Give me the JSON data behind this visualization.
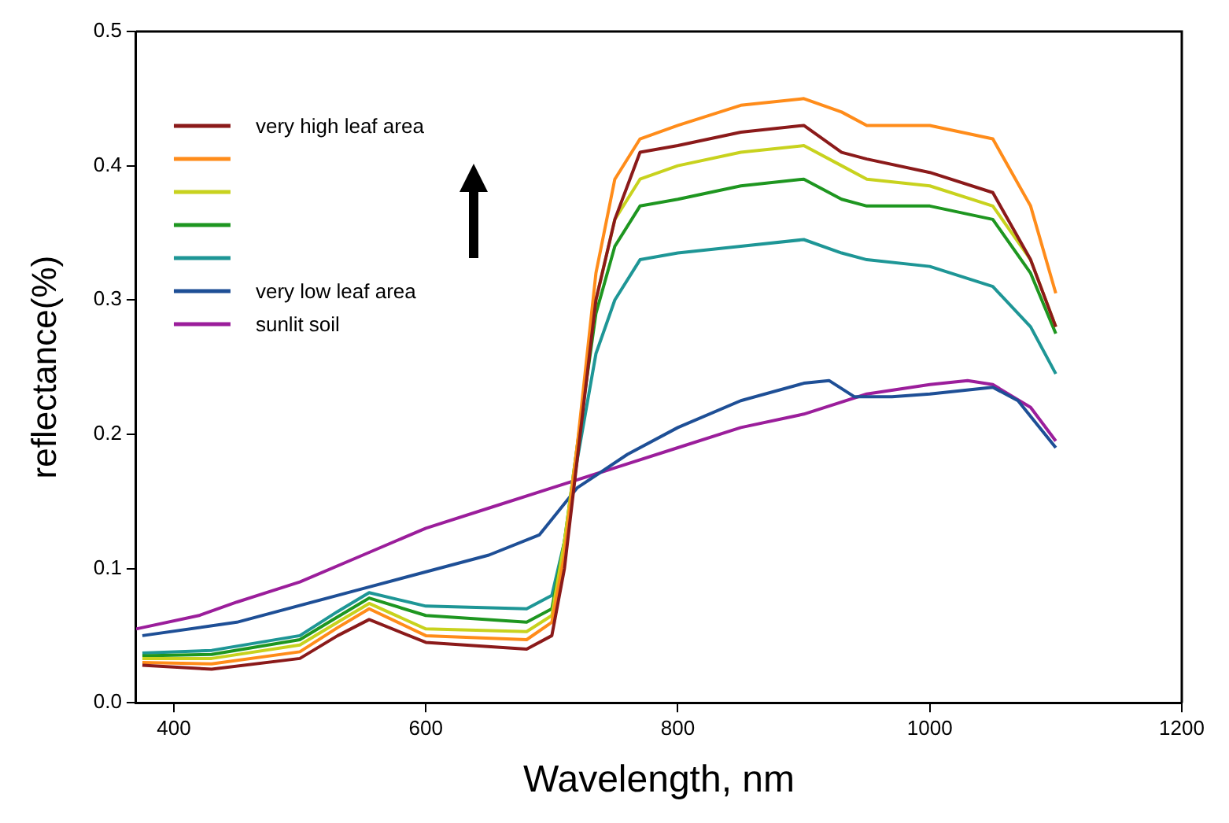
{
  "chart_data": {
    "type": "line",
    "xlabel": "Wavelength, nm",
    "ylabel": "reflectance(%)",
    "xlim": [
      370,
      1200
    ],
    "xticks": [
      400,
      600,
      800,
      1000,
      1200
    ],
    "ylim": [
      0,
      0.5
    ],
    "yticks": [
      {
        "value": 0,
        "label": "0.0"
      },
      {
        "value": 0.1,
        "label": "0.1"
      },
      {
        "value": 0.2,
        "label": "0.2"
      },
      {
        "value": 0.3,
        "label": "0.3"
      },
      {
        "value": 0.4,
        "label": "0.4"
      },
      {
        "value": 0.5,
        "label": "0.5"
      }
    ],
    "grid": false,
    "legend": "top left",
    "series": [
      {
        "name": "very high leaf area",
        "color": "#8b1a1a",
        "x": [
          375,
          430,
          500,
          530,
          555,
          600,
          680,
          700,
          710,
          720,
          735,
          750,
          770,
          800,
          850,
          900,
          930,
          950,
          1000,
          1050,
          1080,
          1100
        ],
        "values": [
          0.028,
          0.025,
          0.033,
          0.05,
          0.062,
          0.045,
          0.04,
          0.05,
          0.1,
          0.18,
          0.3,
          0.36,
          0.41,
          0.415,
          0.425,
          0.43,
          0.41,
          0.405,
          0.395,
          0.38,
          0.33,
          0.28
        ]
      },
      {
        "color": "#ff8c1a",
        "x": [
          375,
          430,
          500,
          530,
          555,
          600,
          680,
          700,
          710,
          720,
          735,
          750,
          770,
          800,
          850,
          900,
          930,
          950,
          1000,
          1050,
          1080,
          1100
        ],
        "values": [
          0.03,
          0.029,
          0.038,
          0.056,
          0.07,
          0.05,
          0.047,
          0.06,
          0.11,
          0.19,
          0.32,
          0.39,
          0.42,
          0.43,
          0.445,
          0.45,
          0.44,
          0.43,
          0.43,
          0.42,
          0.37,
          0.305
        ]
      },
      {
        "color": "#c8d21e",
        "x": [
          375,
          430,
          500,
          530,
          555,
          600,
          680,
          700,
          710,
          720,
          735,
          750,
          770,
          800,
          850,
          900,
          930,
          950,
          1000,
          1050,
          1080,
          1100
        ],
        "values": [
          0.033,
          0.033,
          0.043,
          0.06,
          0.074,
          0.055,
          0.053,
          0.065,
          0.12,
          0.19,
          0.3,
          0.36,
          0.39,
          0.4,
          0.41,
          0.415,
          0.4,
          0.39,
          0.385,
          0.37,
          0.33,
          0.28
        ]
      },
      {
        "color": "#1e9620",
        "x": [
          375,
          430,
          500,
          530,
          555,
          600,
          680,
          700,
          710,
          720,
          735,
          750,
          770,
          800,
          850,
          900,
          930,
          950,
          1000,
          1050,
          1080,
          1100
        ],
        "values": [
          0.035,
          0.036,
          0.047,
          0.064,
          0.078,
          0.065,
          0.06,
          0.07,
          0.12,
          0.19,
          0.29,
          0.34,
          0.37,
          0.375,
          0.385,
          0.39,
          0.375,
          0.37,
          0.37,
          0.36,
          0.32,
          0.275
        ]
      },
      {
        "color": "#1e9696",
        "x": [
          375,
          430,
          500,
          530,
          555,
          600,
          680,
          700,
          710,
          720,
          735,
          750,
          770,
          800,
          850,
          900,
          930,
          950,
          1000,
          1050,
          1080,
          1100
        ],
        "values": [
          0.037,
          0.039,
          0.05,
          0.068,
          0.082,
          0.072,
          0.07,
          0.08,
          0.12,
          0.18,
          0.26,
          0.3,
          0.33,
          0.335,
          0.34,
          0.345,
          0.335,
          0.33,
          0.325,
          0.31,
          0.28,
          0.245
        ]
      },
      {
        "name": "very low leaf area",
        "color": "#1e4f96",
        "x": [
          375,
          450,
          550,
          650,
          690,
          720,
          760,
          800,
          850,
          900,
          920,
          940,
          970,
          1000,
          1050,
          1070,
          1100
        ],
        "values": [
          0.05,
          0.06,
          0.085,
          0.11,
          0.125,
          0.16,
          0.185,
          0.205,
          0.225,
          0.238,
          0.24,
          0.228,
          0.228,
          0.23,
          0.235,
          0.225,
          0.19
        ]
      },
      {
        "name": "sunlit soil",
        "color": "#9b1e9b",
        "x": [
          370,
          420,
          450,
          500,
          550,
          600,
          650,
          700,
          750,
          800,
          850,
          900,
          950,
          1000,
          1030,
          1050,
          1080,
          1100
        ],
        "values": [
          0.055,
          0.065,
          0.075,
          0.09,
          0.11,
          0.13,
          0.145,
          0.16,
          0.175,
          0.19,
          0.205,
          0.215,
          0.23,
          0.237,
          0.24,
          0.237,
          0.22,
          0.195
        ]
      }
    ]
  }
}
